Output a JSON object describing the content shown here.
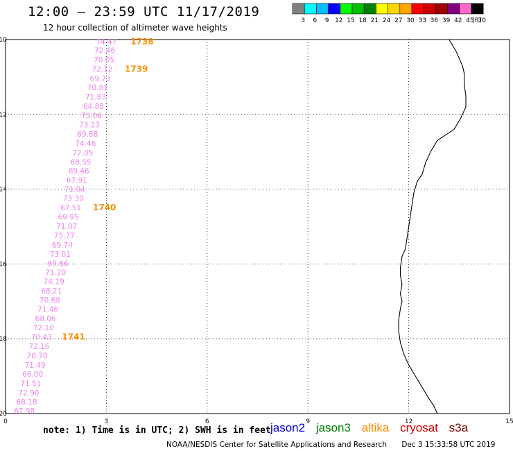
{
  "header": {
    "title": "12:00 – 23:59 UTC 11/17/2019",
    "subtitle": "12 hour collection of altimeter wave heights"
  },
  "colorbar": {
    "labels": [
      "3",
      "6",
      "9",
      "12",
      "15",
      "18",
      "21",
      "24",
      "27",
      "30",
      "33",
      "36",
      "39",
      "42",
      "45",
      "70"
    ],
    "unit": "(ft)",
    "colors": [
      "#808080",
      "#00ffff",
      "#00bfff",
      "#0000ff",
      "#00ff00",
      "#00c000",
      "#008000",
      "#ffff00",
      "#ffd700",
      "#ffa500",
      "#ff0000",
      "#d00000",
      "#a00000",
      "#800080",
      "#ff66cc",
      "#000000"
    ]
  },
  "axes": {
    "x_ticks": [
      "0",
      "3",
      "6",
      "9",
      "12",
      "15"
    ],
    "y_ticks": [
      "-10",
      "-12",
      "-14",
      "-16",
      "-18",
      "-20"
    ],
    "xlim": [
      0,
      15
    ],
    "ylim": [
      -20,
      -10
    ],
    "grid": "dotted"
  },
  "chart_data": {
    "type": "scatter",
    "series": [
      {
        "values": [
          {
            "lon": 3.0,
            "lat": -10.06,
            "label": "74.47"
          },
          {
            "lon": 2.95,
            "lat": -10.29,
            "label": "72.46"
          },
          {
            "lon": 2.93,
            "lat": -10.54,
            "label": "70.05"
          },
          {
            "lon": 2.88,
            "lat": -10.79,
            "label": "72.12"
          },
          {
            "lon": 2.82,
            "lat": -11.04,
            "label": "69.73"
          },
          {
            "lon": 2.74,
            "lat": -11.28,
            "label": "70.81"
          },
          {
            "lon": 2.68,
            "lat": -11.53,
            "label": "71.83"
          },
          {
            "lon": 2.62,
            "lat": -11.78,
            "label": "64.88"
          },
          {
            "lon": 2.56,
            "lat": -12.03,
            "label": "73.06"
          },
          {
            "lon": 2.5,
            "lat": -12.27,
            "label": "73.23"
          },
          {
            "lon": 2.44,
            "lat": -12.52,
            "label": "69.88"
          },
          {
            "lon": 2.38,
            "lat": -12.77,
            "label": "74.46"
          },
          {
            "lon": 2.3,
            "lat": -13.02,
            "label": "72.05"
          },
          {
            "lon": 2.24,
            "lat": -13.27,
            "label": "68.55"
          },
          {
            "lon": 2.18,
            "lat": -13.51,
            "label": "69.46"
          },
          {
            "lon": 2.12,
            "lat": -13.76,
            "label": "67.91"
          },
          {
            "lon": 2.06,
            "lat": -14.0,
            "label": "71.04"
          },
          {
            "lon": 2.02,
            "lat": -14.24,
            "label": "73.30"
          },
          {
            "lon": 1.94,
            "lat": -14.49,
            "label": "67.51"
          },
          {
            "lon": 1.87,
            "lat": -14.74,
            "label": "69.95"
          },
          {
            "lon": 1.82,
            "lat": -14.99,
            "label": "71.07"
          },
          {
            "lon": 1.75,
            "lat": -15.24,
            "label": "75.77"
          },
          {
            "lon": 1.69,
            "lat": -15.49,
            "label": "69.74"
          },
          {
            "lon": 1.63,
            "lat": -15.73,
            "label": "73.01"
          },
          {
            "lon": 1.56,
            "lat": -15.98,
            "label": "69.66"
          },
          {
            "lon": 1.49,
            "lat": -16.22,
            "label": "71.20"
          },
          {
            "lon": 1.44,
            "lat": -16.47,
            "label": "74.19"
          },
          {
            "lon": 1.37,
            "lat": -16.72,
            "label": "68.21"
          },
          {
            "lon": 1.32,
            "lat": -16.96,
            "label": "70.68"
          },
          {
            "lon": 1.26,
            "lat": -17.21,
            "label": "71.46"
          },
          {
            "lon": 1.19,
            "lat": -17.46,
            "label": "68.06"
          },
          {
            "lon": 1.13,
            "lat": -17.7,
            "label": "72.10"
          },
          {
            "lon": 1.07,
            "lat": -17.95,
            "label": "70.43"
          },
          {
            "lon": 1.0,
            "lat": -18.2,
            "label": "72.16"
          },
          {
            "lon": 0.94,
            "lat": -18.45,
            "label": "70.70"
          },
          {
            "lon": 0.88,
            "lat": -18.7,
            "label": "71.49"
          },
          {
            "lon": 0.81,
            "lat": -18.94,
            "label": "66.00"
          },
          {
            "lon": 0.75,
            "lat": -19.19,
            "label": "71.51"
          },
          {
            "lon": 0.69,
            "lat": -19.44,
            "label": "72.90"
          },
          {
            "lon": 0.63,
            "lat": -19.68,
            "label": "68.18"
          },
          {
            "lon": 0.56,
            "lat": -19.93,
            "label": "67.98"
          }
        ]
      }
    ],
    "time_labels": [
      {
        "lon": 3.72,
        "lat": -10.06,
        "text": "1738"
      },
      {
        "lon": 3.55,
        "lat": -10.79,
        "text": "1739"
      },
      {
        "lon": 2.6,
        "lat": -14.49,
        "text": "1740"
      },
      {
        "lon": 1.68,
        "lat": -17.95,
        "text": "1741"
      }
    ],
    "point_color": "#ee82ee",
    "time_color": "#ff8c00",
    "coastline": [
      [
        13.2,
        -10.0
      ],
      [
        13.4,
        -10.3
      ],
      [
        13.5,
        -10.5
      ],
      [
        13.6,
        -10.7
      ],
      [
        13.65,
        -10.9
      ],
      [
        13.65,
        -11.2
      ],
      [
        13.7,
        -11.5
      ],
      [
        13.7,
        -11.8
      ],
      [
        13.55,
        -12.1
      ],
      [
        13.35,
        -12.4
      ],
      [
        13.1,
        -12.55
      ],
      [
        12.85,
        -12.7
      ],
      [
        12.65,
        -13.0
      ],
      [
        12.5,
        -13.3
      ],
      [
        12.4,
        -13.6
      ],
      [
        12.25,
        -13.8
      ],
      [
        12.15,
        -14.1
      ],
      [
        12.1,
        -14.4
      ],
      [
        12.05,
        -14.7
      ],
      [
        12.0,
        -15.0
      ],
      [
        11.95,
        -15.3
      ],
      [
        11.9,
        -15.6
      ],
      [
        11.8,
        -15.8
      ],
      [
        11.75,
        -16.1
      ],
      [
        11.75,
        -16.3
      ],
      [
        11.8,
        -16.55
      ],
      [
        11.75,
        -16.8
      ],
      [
        11.8,
        -17.0
      ],
      [
        11.75,
        -17.2
      ],
      [
        11.7,
        -17.5
      ],
      [
        11.7,
        -17.8
      ],
      [
        11.75,
        -18.1
      ],
      [
        11.85,
        -18.4
      ],
      [
        12.0,
        -18.7
      ],
      [
        12.2,
        -19.0
      ],
      [
        12.4,
        -19.3
      ],
      [
        12.6,
        -19.6
      ],
      [
        12.75,
        -19.8
      ],
      [
        12.85,
        -20.0
      ]
    ]
  },
  "note": "note: 1) Time is in UTC; 2) SWH is in feet",
  "satellites": [
    {
      "name": "jason2",
      "color": "#0000cd"
    },
    {
      "name": "jason3",
      "color": "#008000"
    },
    {
      "name": "altika",
      "color": "#ff8c00"
    },
    {
      "name": "cryosat",
      "color": "#cc0000"
    },
    {
      "name": "s3a",
      "color": "#800000"
    }
  ],
  "footer": {
    "credit": "NOAA/NESDIS Center for Satellite Applications and Research",
    "timestamp": "Dec  3 15:33:58 UTC 2019"
  }
}
